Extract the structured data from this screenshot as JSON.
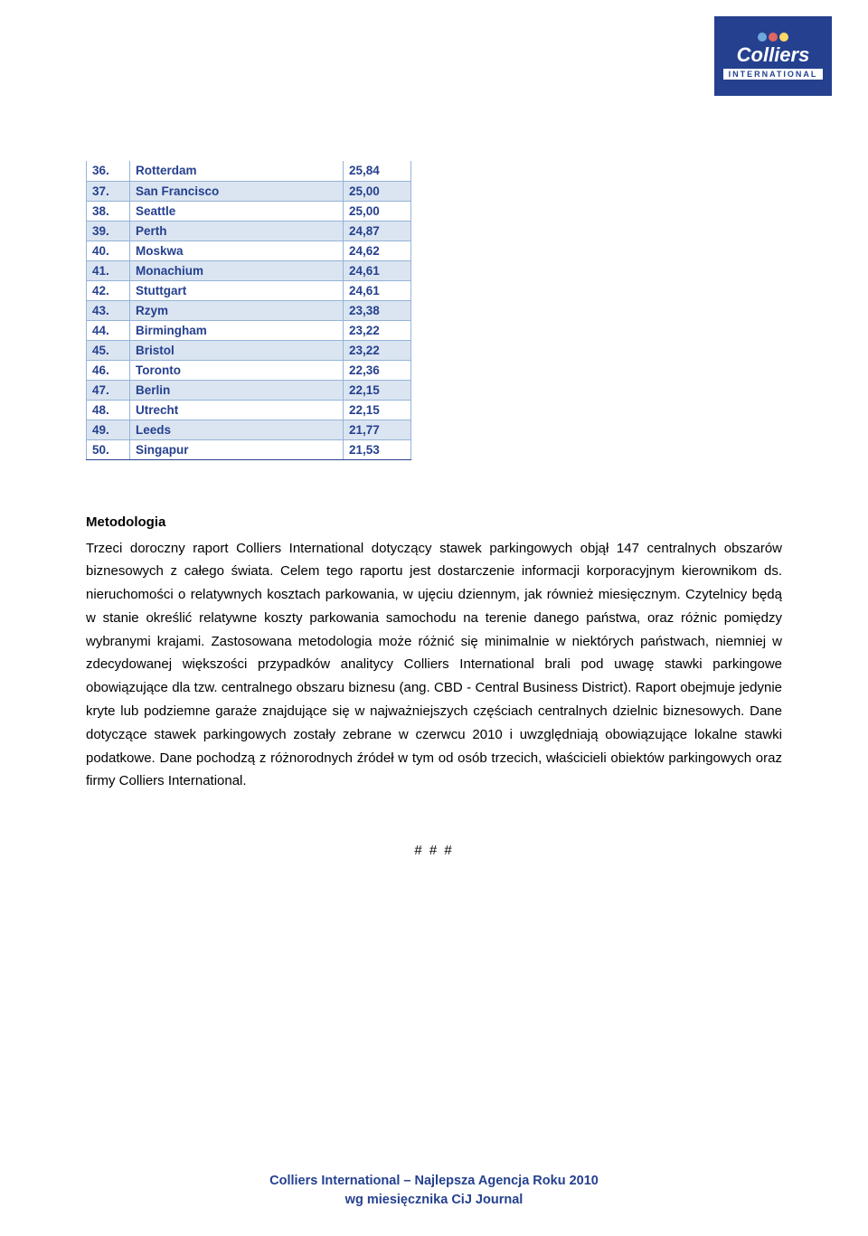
{
  "logo": {
    "name": "Colliers",
    "sub": "INTERNATIONAL"
  },
  "table": {
    "header_bg_alt": "#dbe5f1",
    "border_color": "#95b3d7",
    "text_color": "#25408f",
    "rows": [
      {
        "rank": "36.",
        "city": "Rotterdam",
        "value": "25,84"
      },
      {
        "rank": "37.",
        "city": "San Francisco",
        "value": "25,00"
      },
      {
        "rank": "38.",
        "city": "Seattle",
        "value": "25,00"
      },
      {
        "rank": "39.",
        "city": "Perth",
        "value": "24,87"
      },
      {
        "rank": "40.",
        "city": "Moskwa",
        "value": "24,62"
      },
      {
        "rank": "41.",
        "city": "Monachium",
        "value": "24,61"
      },
      {
        "rank": "42.",
        "city": "Stuttgart",
        "value": "24,61"
      },
      {
        "rank": "43.",
        "city": "Rzym",
        "value": "23,38"
      },
      {
        "rank": "44.",
        "city": "Birmingham",
        "value": "23,22"
      },
      {
        "rank": "45.",
        "city": "Bristol",
        "value": "23,22"
      },
      {
        "rank": "46.",
        "city": "Toronto",
        "value": "22,36"
      },
      {
        "rank": "47.",
        "city": "Berlin",
        "value": "22,15"
      },
      {
        "rank": "48.",
        "city": "Utrecht",
        "value": "22,15"
      },
      {
        "rank": "49.",
        "city": "Leeds",
        "value": "21,77"
      },
      {
        "rank": "50.",
        "city": "Singapur",
        "value": "21,53"
      }
    ]
  },
  "methodology": {
    "heading": "Metodologia",
    "body": "Trzeci doroczny raport Colliers International dotyczący stawek parkingowych objął 147 centralnych obszarów biznesowych z całego świata. Celem tego raportu jest dostarczenie informacji korporacyjnym kierownikom ds. nieruchomości o relatywnych kosztach parkowania, w ujęciu dziennym, jak również miesięcznym. Czytelnicy będą w stanie określić relatywne koszty parkowania samochodu na terenie danego państwa, oraz różnic pomiędzy wybranymi krajami. Zastosowana metodologia może różnić się minimalnie w niektórych państwach, niemniej w zdecydowanej większości przypadków analitycy Colliers International brali pod uwagę stawki parkingowe obowiązujące dla tzw. centralnego obszaru biznesu (ang. CBD - Central Business District). Raport obejmuje jedynie kryte lub podziemne garaże znajdujące się w najważniejszych częściach centralnych dzielnic biznesowych. Dane dotyczące stawek parkingowych zostały zebrane w czerwcu 2010 i uwzględniają obowiązujące lokalne stawki podatkowe. Dane pochodzą z różnorodnych źródeł w tym od osób trzecich, właścicieli obiektów parkingowych oraz firmy Colliers International."
  },
  "hashes": "# # #",
  "footer": {
    "line1": "Colliers International – Najlepsza Agencja Roku 2010",
    "line2": "wg miesięcznika CiJ Journal"
  }
}
